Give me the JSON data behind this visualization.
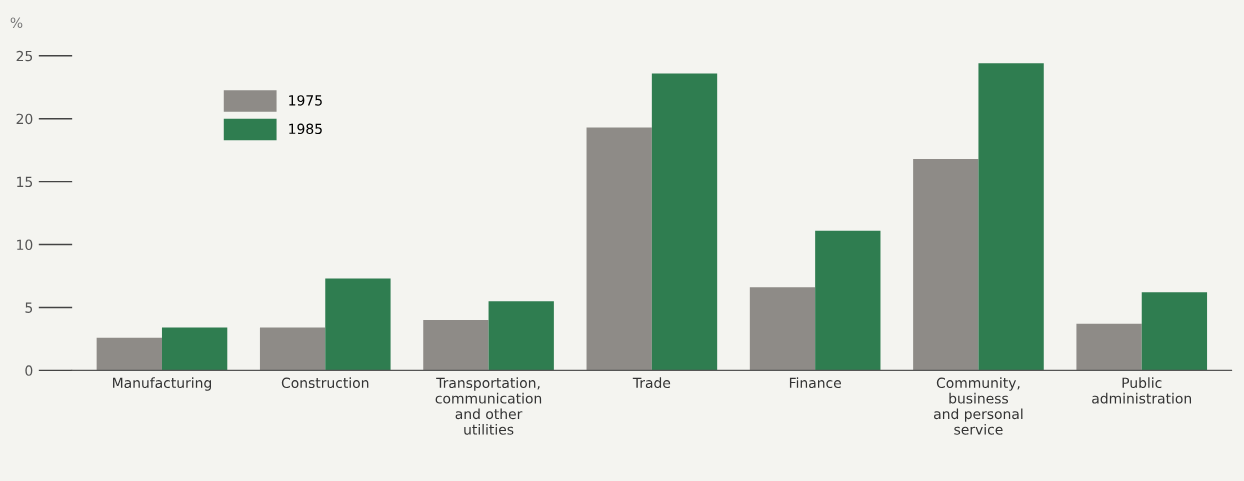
{
  "chart_data": {
    "type": "bar",
    "ylabel": "%",
    "categories": [
      "Manufacturing",
      "Construction",
      "Transportation,\ncommunication\nand other\nutilities",
      "Trade",
      "Finance",
      "Community,\nbusiness\nand personal\nservice",
      "Public\nadministration"
    ],
    "series": [
      {
        "name": "1975",
        "color": "#8e8b87",
        "values": [
          2.6,
          3.4,
          4.0,
          19.3,
          6.6,
          16.8,
          3.7
        ]
      },
      {
        "name": "1985",
        "color": "#2f7d50",
        "values": [
          3.4,
          7.3,
          5.5,
          23.6,
          11.1,
          24.4,
          6.2
        ]
      }
    ],
    "ylim": [
      0,
      25
    ],
    "yticks": [
      0,
      5,
      10,
      15,
      20,
      25
    ],
    "grid": false,
    "legend": "top left"
  }
}
